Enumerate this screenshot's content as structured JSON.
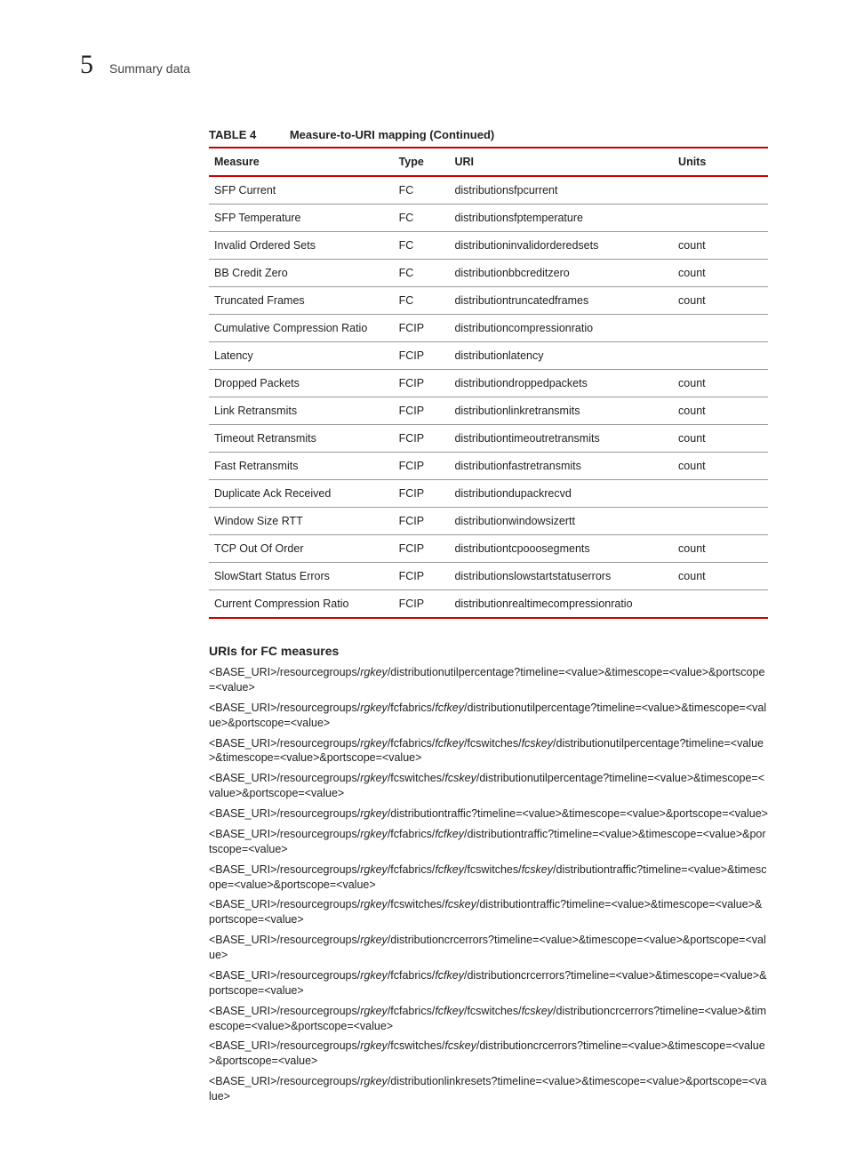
{
  "header": {
    "chapter_number": "5",
    "title": "Summary data"
  },
  "table": {
    "label": "TABLE 4",
    "title": "Measure-to-URI mapping (Continued)",
    "columns": [
      "Measure",
      "Type",
      "URI",
      "Units"
    ],
    "rows": [
      {
        "measure": "SFP Current",
        "type": "FC",
        "uri": "distributionsfpcurrent",
        "units": ""
      },
      {
        "measure": "SFP Temperature",
        "type": "FC",
        "uri": "distributionsfptemperature",
        "units": ""
      },
      {
        "measure": "Invalid Ordered Sets",
        "type": "FC",
        "uri": "distributioninvalidorderedsets",
        "units": "count"
      },
      {
        "measure": "BB Credit Zero",
        "type": "FC",
        "uri": "distributionbbcreditzero",
        "units": "count"
      },
      {
        "measure": "Truncated Frames",
        "type": "FC",
        "uri": "distributiontruncatedframes",
        "units": "count"
      },
      {
        "measure": "Cumulative Compression Ratio",
        "type": "FCIP",
        "uri": "distributioncompressionratio",
        "units": ""
      },
      {
        "measure": "Latency",
        "type": "FCIP",
        "uri": "distributionlatency",
        "units": ""
      },
      {
        "measure": "Dropped Packets",
        "type": "FCIP",
        "uri": "distributiondroppedpackets",
        "units": "count"
      },
      {
        "measure": "Link Retransmits",
        "type": "FCIP",
        "uri": "distributionlinkretransmits",
        "units": "count"
      },
      {
        "measure": "Timeout Retransmits",
        "type": "FCIP",
        "uri": "distributiontimeoutretransmits",
        "units": "count"
      },
      {
        "measure": "Fast Retransmits",
        "type": "FCIP",
        "uri": "distributionfastretransmits",
        "units": "count"
      },
      {
        "measure": "Duplicate Ack Received",
        "type": "FCIP",
        "uri": "distributiondupackrecvd",
        "units": ""
      },
      {
        "measure": "Window Size RTT",
        "type": "FCIP",
        "uri": "distributionwindowsizertt",
        "units": ""
      },
      {
        "measure": "TCP Out Of Order",
        "type": "FCIP",
        "uri": "distributiontcpooosegments",
        "units": "count"
      },
      {
        "measure": "SlowStart Status Errors",
        "type": "FCIP",
        "uri": "distributionslowstartstatuserrors",
        "units": "count"
      },
      {
        "measure": "Current Compression Ratio",
        "type": "FCIP",
        "uri": "distributionrealtimecompressionratio",
        "units": ""
      }
    ]
  },
  "uris_section": {
    "heading": "URIs for FC measures",
    "items": [
      [
        {
          "t": "<BASE_URI>/resourcegroups/",
          "i": false
        },
        {
          "t": "rgkey",
          "i": true
        },
        {
          "t": "/distributionutilpercentage?timeline=<value>&timescope=<value>&portscope=<value>",
          "i": false
        }
      ],
      [
        {
          "t": "<BASE_URI>/resourcegroups/",
          "i": false
        },
        {
          "t": "rgkey",
          "i": true
        },
        {
          "t": "/fcfabrics/",
          "i": false
        },
        {
          "t": "fcfkey",
          "i": true
        },
        {
          "t": "/distributionutilpercentage?timeline=<value>&timescope=<value>&portscope=<value>",
          "i": false
        }
      ],
      [
        {
          "t": "<BASE_URI>/resourcegroups/",
          "i": false
        },
        {
          "t": "rgkey",
          "i": true
        },
        {
          "t": "/fcfabrics/",
          "i": false
        },
        {
          "t": "fcfkey",
          "i": true
        },
        {
          "t": "/fcswitches/",
          "i": false
        },
        {
          "t": "fcskey",
          "i": true
        },
        {
          "t": "/distributionutilpercentage?timeline=<value>&timescope=<value>&portscope=<value>",
          "i": false
        }
      ],
      [
        {
          "t": "<BASE_URI>/resourcegroups/",
          "i": false
        },
        {
          "t": "rgkey",
          "i": true
        },
        {
          "t": "/fcswitches/",
          "i": false
        },
        {
          "t": "fcskey",
          "i": true
        },
        {
          "t": "/distributionutilpercentage?timeline=<value>&timescope=<value>&portscope=<value>",
          "i": false
        }
      ],
      [
        {
          "t": "<BASE_URI>/resourcegroups/",
          "i": false
        },
        {
          "t": "rgkey",
          "i": true
        },
        {
          "t": "/distributiontraffic?timeline=<value>&timescope=<value>&portscope=<value>",
          "i": false
        }
      ],
      [
        {
          "t": "<BASE_URI>/resourcegroups/",
          "i": false
        },
        {
          "t": "rgkey",
          "i": true
        },
        {
          "t": "/fcfabrics/",
          "i": false
        },
        {
          "t": "fcfkey",
          "i": true
        },
        {
          "t": "/distributiontraffic?timeline=<value>&timescope=<value>&portscope=<value>",
          "i": false
        }
      ],
      [
        {
          "t": "<BASE_URI>/resourcegroups/",
          "i": false
        },
        {
          "t": "rgkey",
          "i": true
        },
        {
          "t": "/fcfabrics/",
          "i": false
        },
        {
          "t": "fcfkey",
          "i": true
        },
        {
          "t": "/fcswitches/",
          "i": false
        },
        {
          "t": "fcskey",
          "i": true
        },
        {
          "t": "/distributiontraffic?timeline=<value>&timescope=<value>&portscope=<value>",
          "i": false
        }
      ],
      [
        {
          "t": "<BASE_URI>/resourcegroups/",
          "i": false
        },
        {
          "t": "rgkey",
          "i": true
        },
        {
          "t": "/fcswitches/",
          "i": false
        },
        {
          "t": "fcskey",
          "i": true
        },
        {
          "t": "/distributiontraffic?timeline=<value>&timescope=<value>&portscope=<value>",
          "i": false
        }
      ],
      [
        {
          "t": "<BASE_URI>/resourcegroups/",
          "i": false
        },
        {
          "t": "rgkey",
          "i": true
        },
        {
          "t": "/distributioncrcerrors?timeline=<value>&timescope=<value>&portscope=<value>",
          "i": false
        }
      ],
      [
        {
          "t": "<BASE_URI>/resourcegroups/",
          "i": false
        },
        {
          "t": "rgkey",
          "i": true
        },
        {
          "t": "/fcfabrics/",
          "i": false
        },
        {
          "t": "fcfkey",
          "i": true
        },
        {
          "t": "/distributioncrcerrors?timeline=<value>&timescope=<value>&portscope=<value>",
          "i": false
        }
      ],
      [
        {
          "t": "<BASE_URI>/resourcegroups/",
          "i": false
        },
        {
          "t": "rgkey",
          "i": true
        },
        {
          "t": "/fcfabrics/",
          "i": false
        },
        {
          "t": "fcfkey",
          "i": true
        },
        {
          "t": "/fcswitches/",
          "i": false
        },
        {
          "t": "fcskey",
          "i": true
        },
        {
          "t": "/distributioncrcerrors?timeline=<value>&timescope=<value>&portscope=<value>",
          "i": false
        }
      ],
      [
        {
          "t": "<BASE_URI>/resourcegroups/",
          "i": false
        },
        {
          "t": "rgkey",
          "i": true
        },
        {
          "t": "/fcswitches/",
          "i": false
        },
        {
          "t": "fcskey",
          "i": true
        },
        {
          "t": "/distributioncrcerrors?timeline=<value>&timescope=<value>&portscope=<value>",
          "i": false
        }
      ],
      [
        {
          "t": "<BASE_URI>/resourcegroups/",
          "i": false
        },
        {
          "t": "rgkey",
          "i": true
        },
        {
          "t": "/distributionlinkresets?timeline=<value>&timescope=<value>&portscope=<value>",
          "i": false
        }
      ]
    ]
  },
  "colors": {
    "rule": "#cc0000",
    "row_border": "#999999",
    "text": "#222222",
    "background": "#ffffff"
  }
}
